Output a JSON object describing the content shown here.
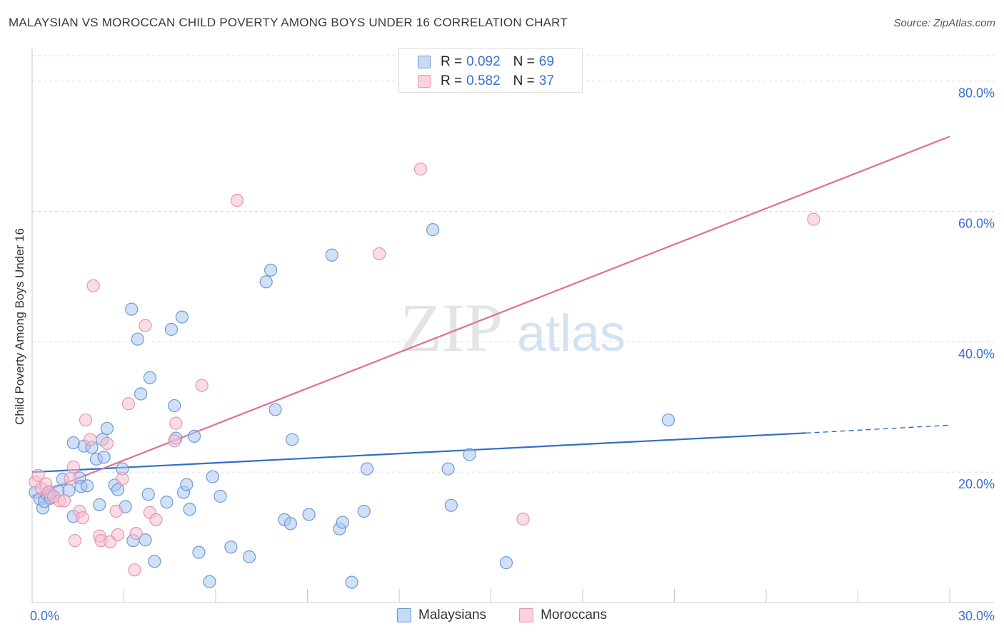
{
  "title": "MALAYSIAN VS MOROCCAN CHILD POVERTY AMONG BOYS UNDER 16 CORRELATION CHART",
  "source": "Source: ZipAtlas.com",
  "watermark": {
    "zip": "ZIP",
    "atlas": "atlas"
  },
  "legend_top": [
    {
      "r_label": "R =",
      "r_value": "0.092",
      "n_label": "N =",
      "n_value": "69"
    },
    {
      "r_label": "R =",
      "r_value": "0.582",
      "n_label": "N =",
      "n_value": "37"
    }
  ],
  "legend_bottom": [
    "Malaysians",
    "Moroccans"
  ],
  "colors": {
    "blue_fill": "#a9c7ef",
    "blue_stroke": "#6d9ad6",
    "blue_line": "#2f6fc9",
    "pink_fill": "#f6bfd1",
    "pink_stroke": "#e894b0",
    "pink_line": "#e06e98",
    "axis_label": "#3b6fd0",
    "grid": "#dcdcdc"
  },
  "chart_data": {
    "type": "scatter",
    "title": "MALAYSIAN VS MOROCCAN CHILD POVERTY AMONG BOYS UNDER 16 CORRELATION CHART",
    "xlabel": "",
    "ylabel": "Child Poverty Among Boys Under 16",
    "xlim": [
      0,
      30
    ],
    "ylim": [
      0,
      85
    ],
    "x_tick_labels": [
      {
        "value": 0,
        "label": "0.0%"
      },
      {
        "value": 30,
        "label": "30.0%"
      }
    ],
    "y_ticks": [
      {
        "value": 20,
        "label": "20.0%"
      },
      {
        "value": 40,
        "label": "40.0%"
      },
      {
        "value": 60,
        "label": "60.0%"
      },
      {
        "value": 80,
        "label": "80.0%"
      }
    ],
    "legend": "top-center",
    "series": [
      {
        "name": "Malaysians",
        "color": "#a9c7ef",
        "r": 0.092,
        "n": 69,
        "trend": {
          "x0": 0,
          "y0": 20.0,
          "x1": 25.3,
          "y1": 26.0,
          "dashed_to_x": 30,
          "dashed_to_y": 27.2
        },
        "points": [
          [
            0.1,
            16.9
          ],
          [
            0.25,
            15.9
          ],
          [
            0.35,
            14.5
          ],
          [
            0.4,
            15.5
          ],
          [
            0.5,
            16.5
          ],
          [
            0.55,
            17.0
          ],
          [
            0.6,
            16.0
          ],
          [
            0.7,
            16.3
          ],
          [
            0.85,
            17.1
          ],
          [
            1.0,
            18.9
          ],
          [
            1.2,
            17.2
          ],
          [
            1.35,
            24.5
          ],
          [
            1.35,
            13.2
          ],
          [
            1.55,
            19.1
          ],
          [
            1.6,
            17.8
          ],
          [
            1.7,
            24.0
          ],
          [
            1.8,
            17.9
          ],
          [
            1.95,
            23.8
          ],
          [
            2.1,
            22.0
          ],
          [
            2.2,
            15.0
          ],
          [
            2.3,
            25.0
          ],
          [
            2.35,
            22.3
          ],
          [
            2.45,
            26.7
          ],
          [
            2.7,
            18.0
          ],
          [
            2.8,
            17.3
          ],
          [
            2.95,
            20.5
          ],
          [
            3.05,
            14.7
          ],
          [
            3.25,
            45.0
          ],
          [
            3.3,
            9.5
          ],
          [
            3.45,
            40.4
          ],
          [
            3.55,
            32.0
          ],
          [
            3.7,
            9.6
          ],
          [
            3.8,
            16.6
          ],
          [
            3.85,
            34.5
          ],
          [
            4.0,
            6.3
          ],
          [
            4.4,
            15.4
          ],
          [
            4.55,
            41.9
          ],
          [
            4.65,
            30.2
          ],
          [
            4.7,
            25.2
          ],
          [
            4.9,
            43.8
          ],
          [
            4.95,
            16.9
          ],
          [
            5.05,
            18.1
          ],
          [
            5.15,
            14.3
          ],
          [
            5.3,
            25.5
          ],
          [
            5.45,
            7.7
          ],
          [
            5.8,
            3.2
          ],
          [
            5.9,
            19.3
          ],
          [
            6.15,
            16.3
          ],
          [
            6.5,
            8.5
          ],
          [
            7.1,
            7.0
          ],
          [
            7.65,
            49.2
          ],
          [
            7.8,
            51.0
          ],
          [
            7.95,
            29.6
          ],
          [
            8.25,
            12.7
          ],
          [
            8.45,
            12.1
          ],
          [
            8.5,
            25.0
          ],
          [
            9.05,
            13.5
          ],
          [
            9.8,
            53.3
          ],
          [
            10.05,
            11.3
          ],
          [
            10.15,
            12.3
          ],
          [
            10.45,
            3.1
          ],
          [
            10.85,
            14.0
          ],
          [
            10.95,
            20.5
          ],
          [
            13.1,
            57.2
          ],
          [
            13.6,
            20.5
          ],
          [
            13.7,
            14.9
          ],
          [
            14.3,
            22.7
          ],
          [
            15.5,
            6.1
          ],
          [
            20.8,
            28.0
          ]
        ]
      },
      {
        "name": "Moroccans",
        "color": "#f6bfd1",
        "r": 0.582,
        "n": 37,
        "trend": {
          "x0": 0,
          "y0": 16.3,
          "x1": 30,
          "y1": 71.5
        },
        "points": [
          [
            0.1,
            18.5
          ],
          [
            0.2,
            19.5
          ],
          [
            0.3,
            17.5
          ],
          [
            0.45,
            18.2
          ],
          [
            0.55,
            16.9
          ],
          [
            0.7,
            16.2
          ],
          [
            0.9,
            15.6
          ],
          [
            1.05,
            15.6
          ],
          [
            1.25,
            19.0
          ],
          [
            1.35,
            20.8
          ],
          [
            1.4,
            9.5
          ],
          [
            1.55,
            14.0
          ],
          [
            1.65,
            13.0
          ],
          [
            1.75,
            28.0
          ],
          [
            1.9,
            25.0
          ],
          [
            2.0,
            48.6
          ],
          [
            2.2,
            10.2
          ],
          [
            2.25,
            9.5
          ],
          [
            2.45,
            24.4
          ],
          [
            2.55,
            9.3
          ],
          [
            2.75,
            14.0
          ],
          [
            2.8,
            10.4
          ],
          [
            2.95,
            19.0
          ],
          [
            3.15,
            30.5
          ],
          [
            3.35,
            5.0
          ],
          [
            3.4,
            10.6
          ],
          [
            3.7,
            42.5
          ],
          [
            3.85,
            13.8
          ],
          [
            4.05,
            12.7
          ],
          [
            4.65,
            24.8
          ],
          [
            4.7,
            27.5
          ],
          [
            5.55,
            33.3
          ],
          [
            6.7,
            61.7
          ],
          [
            11.35,
            53.5
          ],
          [
            12.7,
            66.5
          ],
          [
            16.05,
            12.8
          ],
          [
            25.55,
            58.8
          ]
        ]
      }
    ]
  }
}
